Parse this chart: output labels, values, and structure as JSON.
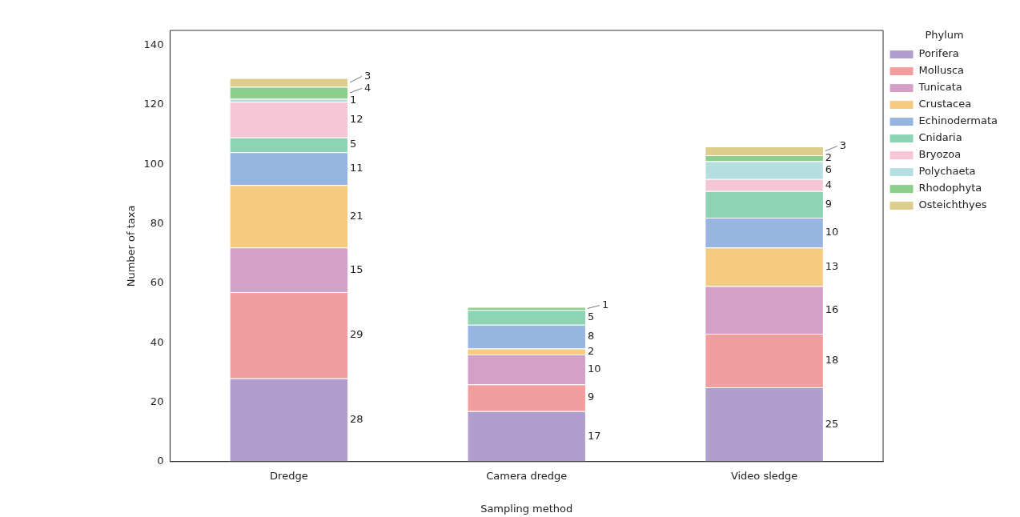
{
  "chart_data": {
    "type": "bar",
    "stacked": true,
    "xlabel": "Sampling method",
    "ylabel": "Number of taxa",
    "legend_title": "Phylum",
    "legend": "top right",
    "data_labels": true,
    "grid": false,
    "categories": [
      "Dredge",
      "Camera dredge",
      "Video sledge"
    ],
    "ylim": [
      0,
      145
    ],
    "yticks": [
      0,
      20,
      40,
      60,
      80,
      100,
      120,
      140
    ],
    "series": [
      {
        "name": "Porifera",
        "color": "#b09fcc",
        "values": [
          28,
          17,
          25
        ]
      },
      {
        "name": "Mollusca",
        "color": "#f29e9e",
        "values": [
          29,
          9,
          18
        ]
      },
      {
        "name": "Tunicata",
        "color": "#d4a0c8",
        "values": [
          15,
          10,
          16
        ]
      },
      {
        "name": "Crustacea",
        "color": "#f6cb80",
        "values": [
          21,
          2,
          13
        ]
      },
      {
        "name": "Echinodermata",
        "color": "#96b5e0",
        "values": [
          11,
          8,
          10
        ]
      },
      {
        "name": "Cnidaria",
        "color": "#8fd3b5",
        "values": [
          5,
          5,
          9
        ]
      },
      {
        "name": "Bryozoa",
        "color": "#f7c6d6",
        "values": [
          12,
          null,
          4
        ]
      },
      {
        "name": "Polychaeta",
        "color": "#b5dede",
        "values": [
          1,
          null,
          6
        ]
      },
      {
        "name": "Rhodophyta",
        "color": "#8ccf8c",
        "values": [
          4,
          1,
          2
        ]
      },
      {
        "name": "Osteichthyes",
        "color": "#dccd8c",
        "values": [
          3,
          null,
          3
        ]
      }
    ]
  }
}
